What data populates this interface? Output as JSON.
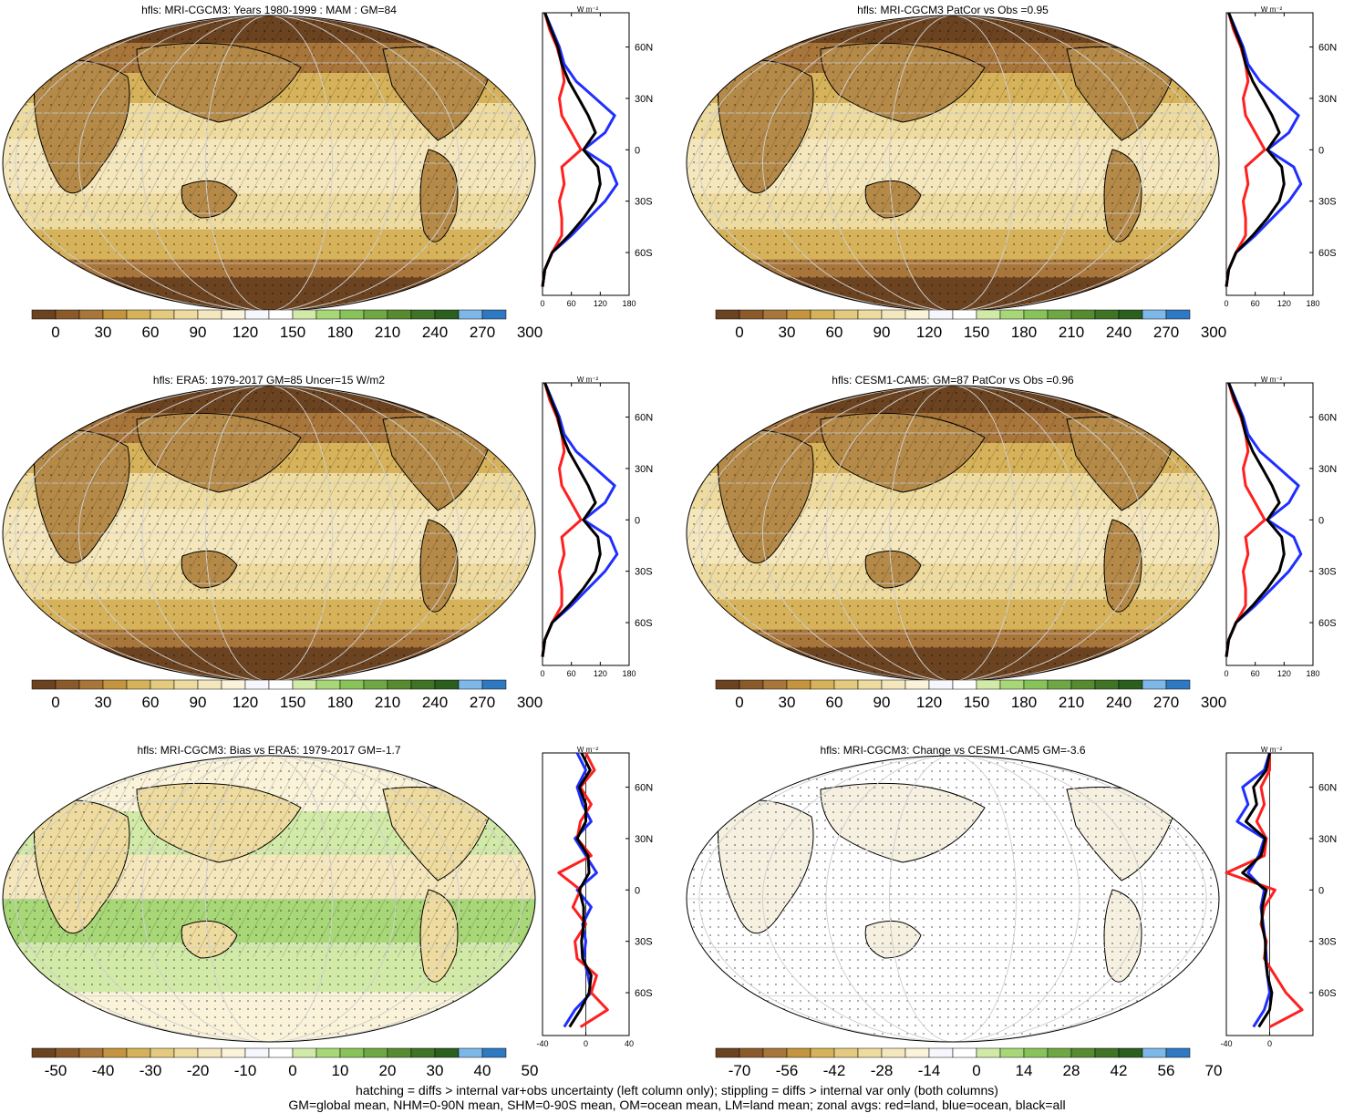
{
  "panels": [
    {
      "id": "p1",
      "title": "hfls: MRI-CGCM3: Years 1980-1999 : MAM : GM=84",
      "cbar_labels": [
        "0",
        "30",
        "60",
        "90",
        "120",
        "150",
        "180",
        "210",
        "240",
        "270",
        "300"
      ],
      "zonal_ticks": [
        "0",
        "60",
        "120",
        "180"
      ],
      "zonal_xlim": [
        0,
        180
      ],
      "palette": "abs"
    },
    {
      "id": "p2",
      "title": "hfls: MRI-CGCM3 PatCor vs Obs =0.95",
      "cbar_labels": [
        "0",
        "30",
        "60",
        "90",
        "120",
        "150",
        "180",
        "210",
        "240",
        "270",
        "300"
      ],
      "zonal_ticks": [
        "0",
        "60",
        "120",
        "180"
      ],
      "zonal_xlim": [
        0,
        180
      ],
      "palette": "abs"
    },
    {
      "id": "p3",
      "title": "hfls: ERA5: 1979-2017 GM=85 Uncer=15 W/m2",
      "cbar_labels": [
        "0",
        "30",
        "60",
        "90",
        "120",
        "150",
        "180",
        "210",
        "240",
        "270",
        "300"
      ],
      "zonal_ticks": [
        "0",
        "60",
        "120",
        "180"
      ],
      "zonal_xlim": [
        0,
        180
      ],
      "palette": "abs"
    },
    {
      "id": "p4",
      "title": "hfls: CESM1-CAM5: GM=87 PatCor vs Obs =0.96",
      "cbar_labels": [
        "0",
        "30",
        "60",
        "90",
        "120",
        "150",
        "180",
        "210",
        "240",
        "270",
        "300"
      ],
      "zonal_ticks": [
        "0",
        "60",
        "120",
        "180"
      ],
      "zonal_xlim": [
        0,
        180
      ],
      "palette": "abs"
    },
    {
      "id": "p5",
      "title": "hfls: MRI-CGCM3: Bias vs ERA5: 1979-2017 GM=-1.7",
      "cbar_labels": [
        "-50",
        "-40",
        "-30",
        "-20",
        "-10",
        "0",
        "10",
        "20",
        "30",
        "40",
        "50"
      ],
      "zonal_ticks": [
        "-40",
        "0",
        "40"
      ],
      "zonal_xlim": [
        -40,
        40
      ],
      "palette": "diff"
    },
    {
      "id": "p6",
      "title": "hfls: MRI-CGCM3: Change vs CESM1-CAM5 GM=-3.6",
      "cbar_labels": [
        "-70",
        "-56",
        "-42",
        "-28",
        "-14",
        "0",
        "14",
        "28",
        "42",
        "56",
        "70"
      ],
      "zonal_ticks": [
        "-40",
        "0"
      ],
      "zonal_xlim": [
        -40,
        40
      ],
      "palette": "diff"
    }
  ],
  "zonal_unit": "W m⁻²",
  "lat_labels": [
    "60N",
    "30N",
    "0",
    "30S",
    "60S"
  ],
  "lat_values": [
    60,
    30,
    0,
    -30,
    -60
  ],
  "palettes": {
    "abs": [
      "#6b4320",
      "#8a5a2b",
      "#a8753a",
      "#c4943f",
      "#d6b25a",
      "#e3ca7e",
      "#eedb9f",
      "#f5e7bd",
      "#faf3d9",
      "#f6f7fc",
      "#ffffff",
      "#d2eaa8",
      "#a8d777",
      "#88c35a",
      "#6ea743",
      "#578b30",
      "#3f7326",
      "#2b5f1e",
      "#7db8e8",
      "#2f79c2"
    ],
    "diff": [
      "#6b4320",
      "#8a5a2b",
      "#a8753a",
      "#c4943f",
      "#d6b25a",
      "#e3ca7e",
      "#eedb9f",
      "#f5e7bd",
      "#faf3d9",
      "#f6f7fc",
      "#ffffff",
      "#d2eaa8",
      "#a8d777",
      "#88c35a",
      "#6ea743",
      "#578b30",
      "#3f7326",
      "#2b5f1e",
      "#7db8e8",
      "#2f79c2"
    ]
  },
  "zonal_colors": {
    "land": "#ff1f1f",
    "ocean": "#1f2fff",
    "all": "#000000"
  },
  "zonal_profiles": {
    "abs": {
      "lat": [
        -80,
        -70,
        -60,
        -50,
        -40,
        -30,
        -20,
        -10,
        0,
        10,
        20,
        30,
        40,
        50,
        60,
        70,
        80
      ],
      "land": [
        0,
        5,
        20,
        40,
        40,
        35,
        45,
        40,
        80,
        60,
        40,
        35,
        45,
        40,
        30,
        15,
        5
      ],
      "ocean": [
        0,
        5,
        20,
        60,
        95,
        130,
        155,
        140,
        85,
        130,
        150,
        110,
        70,
        45,
        35,
        20,
        5
      ],
      "all": [
        0,
        5,
        20,
        55,
        85,
        110,
        120,
        115,
        85,
        110,
        95,
        75,
        55,
        40,
        32,
        18,
        5
      ]
    },
    "bias": {
      "lat": [
        -80,
        -70,
        -60,
        -50,
        -40,
        -30,
        -20,
        -10,
        0,
        10,
        20,
        30,
        40,
        50,
        60,
        70,
        80
      ],
      "land": [
        -5,
        20,
        5,
        10,
        -8,
        -10,
        0,
        -12,
        -5,
        -25,
        5,
        -8,
        -5,
        5,
        -5,
        8,
        0
      ],
      "ocean": [
        -20,
        -10,
        5,
        2,
        -2,
        0,
        -3,
        5,
        -8,
        10,
        0,
        -10,
        5,
        -3,
        -8,
        0,
        -8
      ],
      "all": [
        -15,
        -5,
        3,
        5,
        -3,
        -4,
        -2,
        -2,
        -6,
        3,
        2,
        -8,
        0,
        0,
        -6,
        4,
        -4
      ]
    },
    "change": {
      "lat": [
        -80,
        -70,
        -60,
        -50,
        -40,
        -30,
        -20,
        -10,
        0,
        10,
        20,
        30,
        40,
        50,
        60,
        70,
        80
      ],
      "land": [
        0,
        30,
        15,
        5,
        -5,
        -3,
        -8,
        -5,
        5,
        -40,
        -5,
        -3,
        -12,
        -5,
        -8,
        0,
        0
      ],
      "ocean": [
        -15,
        -5,
        0,
        -2,
        -3,
        -4,
        -6,
        -8,
        -5,
        -20,
        -10,
        -5,
        -30,
        -20,
        -25,
        -5,
        0
      ],
      "all": [
        -10,
        0,
        2,
        -2,
        -4,
        -4,
        -7,
        -7,
        -3,
        -25,
        -8,
        -4,
        -22,
        -12,
        -15,
        -3,
        0
      ]
    }
  },
  "footer": {
    "line1": "hatching = diffs > internal var+obs uncertainty (left column only); stippling = diffs > internal var only (both columns)",
    "line2": "GM=global mean, NHM=0-90N mean, SHM=0-90S mean, OM=ocean mean, LM=land mean; zonal avgs: red=land, blue=ocean, black=all"
  }
}
